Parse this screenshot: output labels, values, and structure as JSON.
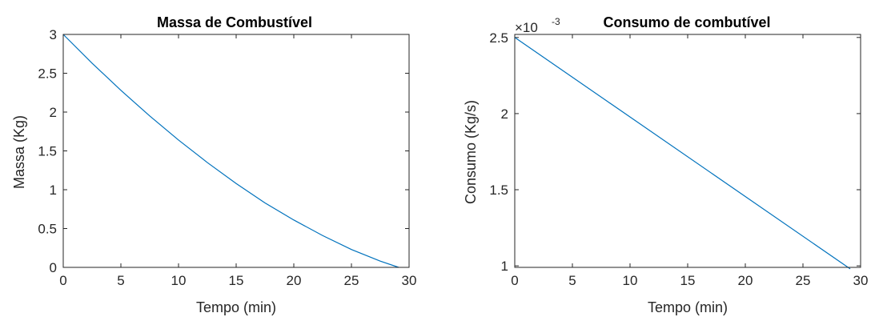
{
  "chart_data": [
    {
      "type": "line",
      "title": "Massa de Combustível",
      "xlabel": "Tempo (min)",
      "ylabel": "Massa (Kg)",
      "xlim": [
        0,
        30
      ],
      "ylim": [
        0,
        3
      ],
      "x_ticks": [
        "0",
        "5",
        "10",
        "15",
        "20",
        "25",
        "30"
      ],
      "y_ticks": [
        "0",
        "0.5",
        "1",
        "1.5",
        "2",
        "2.5",
        "3"
      ],
      "grid": false,
      "series": [
        {
          "color": "#0072bd",
          "x": [
            0,
            2.5,
            5,
            7.5,
            10,
            12.5,
            15,
            17.5,
            20,
            22.5,
            25,
            27.5,
            29.1
          ],
          "y": [
            3.0,
            2.63,
            2.28,
            1.95,
            1.64,
            1.35,
            1.08,
            0.83,
            0.61,
            0.41,
            0.23,
            0.08,
            0.0
          ]
        }
      ]
    },
    {
      "type": "line",
      "title": "Consumo de combutível",
      "xlabel": "Tempo (min)",
      "ylabel": "Consumo (Kg/s)",
      "xlim": [
        0,
        30
      ],
      "ylim": [
        0.00099,
        0.00252
      ],
      "exponent_label": {
        "base": "×10",
        "power": "-3"
      },
      "x_ticks": [
        "0",
        "5",
        "10",
        "15",
        "20",
        "25",
        "30"
      ],
      "y_ticks": [
        "1",
        "1.5",
        "2",
        "2.5"
      ],
      "grid": false,
      "series": [
        {
          "color": "#0072bd",
          "x": [
            0,
            29.1
          ],
          "y": [
            0.0025,
            0.00098
          ]
        }
      ]
    }
  ]
}
